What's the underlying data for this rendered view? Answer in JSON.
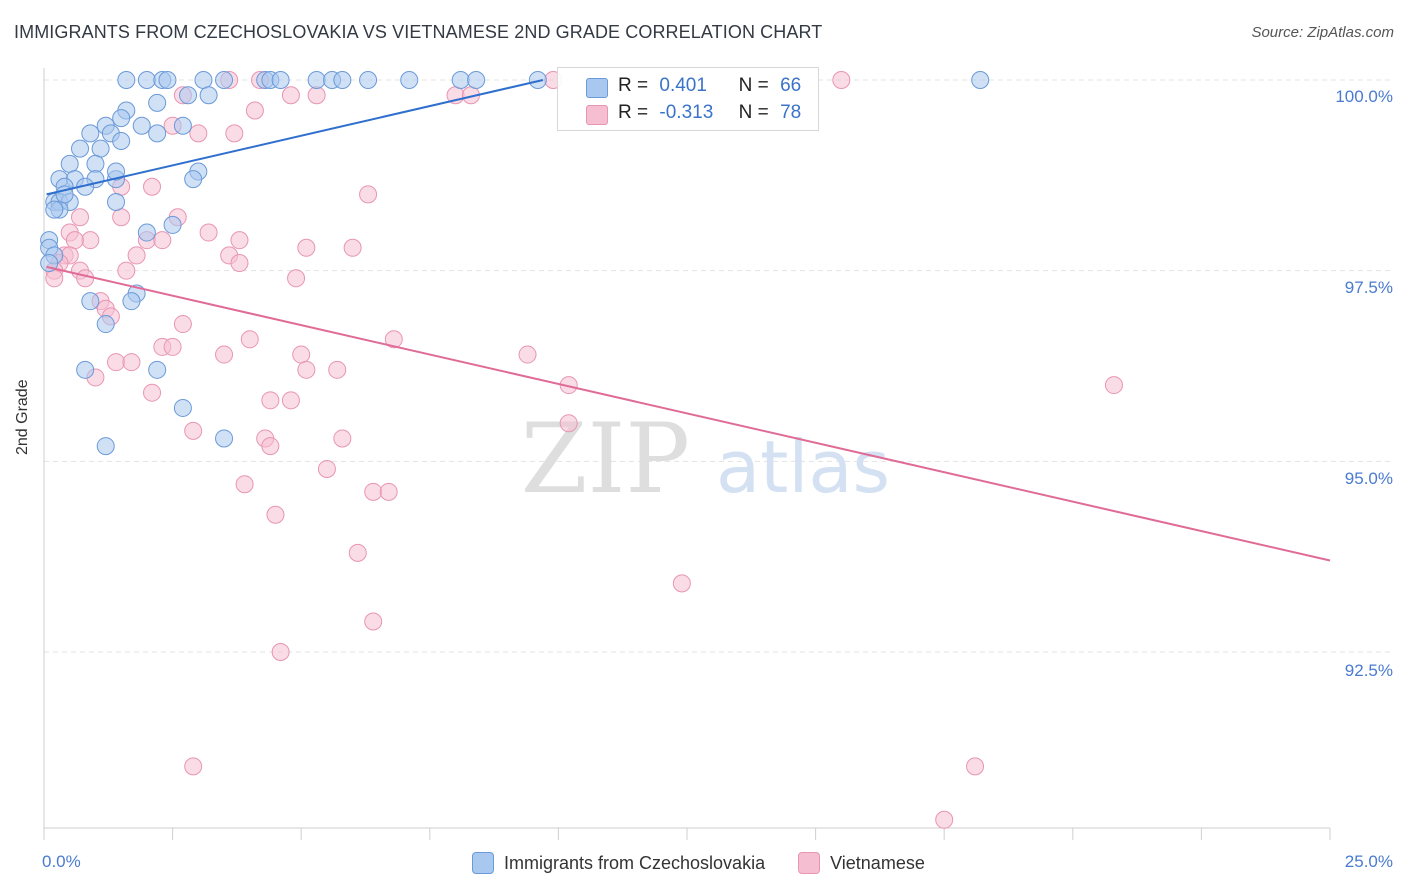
{
  "header": {
    "title": "IMMIGRANTS FROM CZECHOSLOVAKIA VS VIETNAMESE 2ND GRADE CORRELATION CHART",
    "source": "Source: ZipAtlas.com"
  },
  "legend": {
    "r_label": "R =",
    "n_label": "N =",
    "series1": {
      "r": "0.401",
      "n": "66"
    },
    "series2": {
      "r": "-0.313",
      "n": "78"
    }
  },
  "watermark": {
    "zip": "ZIP",
    "atlas": "atlas"
  },
  "colors": {
    "blue_fill": "#a9c8ef",
    "blue_stroke": "#6b9ad8",
    "blue_line": "#2f6fce",
    "pink_fill": "#f6bfd1",
    "pink_stroke": "#e895b2",
    "pink_line": "#e06b96",
    "tick": "#4a7bd0"
  },
  "chart_data": {
    "type": "scatter",
    "title": "IMMIGRANTS FROM CZECHOSLOVAKIA VS VIETNAMESE 2ND GRADE CORRELATION CHART",
    "xlabel": "",
    "ylabel": "2nd Grade",
    "xlim": [
      0,
      25
    ],
    "ylim": [
      90.2,
      100.5
    ],
    "x_tick_labels": [
      "0.0%",
      "25.0%"
    ],
    "y_ticks": [
      92.5,
      95.0,
      97.5,
      100.0
    ],
    "y_tick_labels": [
      "92.5%",
      "95.0%",
      "97.5%",
      "100.0%"
    ],
    "grid": true,
    "series": [
      {
        "name": "Immigrants from Czechoslovakia",
        "color": "blue",
        "trend": {
          "x": [
            0.05,
            9.7
          ],
          "y": [
            98.5,
            100.0
          ]
        },
        "points": [
          [
            1.6,
            100
          ],
          [
            2.0,
            100
          ],
          [
            2.3,
            100
          ],
          [
            2.4,
            100
          ],
          [
            3.1,
            100
          ],
          [
            3.5,
            100
          ],
          [
            4.3,
            100
          ],
          [
            4.4,
            100
          ],
          [
            4.6,
            100
          ],
          [
            5.3,
            100
          ],
          [
            5.6,
            100
          ],
          [
            5.8,
            100
          ],
          [
            6.3,
            100
          ],
          [
            7.1,
            100
          ],
          [
            8.1,
            100
          ],
          [
            8.4,
            100
          ],
          [
            9.6,
            100
          ],
          [
            18.2,
            100
          ],
          [
            1.6,
            99.6
          ],
          [
            2.2,
            99.7
          ],
          [
            2.8,
            99.8
          ],
          [
            3.2,
            99.8
          ],
          [
            1.9,
            99.4
          ],
          [
            2.2,
            99.3
          ],
          [
            2.7,
            99.4
          ],
          [
            1.2,
            99.4
          ],
          [
            1.3,
            99.3
          ],
          [
            1.5,
            99.5
          ],
          [
            0.9,
            99.3
          ],
          [
            1.5,
            99.2
          ],
          [
            0.7,
            99.1
          ],
          [
            1.1,
            99.1
          ],
          [
            0.5,
            98.9
          ],
          [
            1.0,
            98.9
          ],
          [
            3.0,
            98.8
          ],
          [
            0.3,
            98.7
          ],
          [
            0.6,
            98.7
          ],
          [
            1.0,
            98.7
          ],
          [
            1.4,
            98.7
          ],
          [
            0.4,
            98.6
          ],
          [
            0.8,
            98.6
          ],
          [
            2.9,
            98.7
          ],
          [
            0.2,
            98.4
          ],
          [
            0.3,
            98.4
          ],
          [
            0.5,
            98.4
          ],
          [
            1.4,
            98.4
          ],
          [
            0.3,
            98.3
          ],
          [
            2.0,
            98.0
          ],
          [
            2.5,
            98.1
          ],
          [
            0.1,
            97.9
          ],
          [
            0.1,
            97.8
          ],
          [
            0.2,
            97.7
          ],
          [
            0.1,
            97.6
          ],
          [
            0.9,
            97.1
          ],
          [
            1.8,
            97.2
          ],
          [
            1.7,
            97.1
          ],
          [
            1.2,
            96.8
          ],
          [
            0.8,
            96.2
          ],
          [
            2.2,
            96.2
          ],
          [
            2.7,
            95.7
          ],
          [
            3.5,
            95.3
          ],
          [
            1.2,
            95.2
          ],
          [
            0.2,
            98.3
          ],
          [
            0.4,
            98.5
          ],
          [
            1.4,
            98.8
          ]
        ]
      },
      {
        "name": "Vietnamese",
        "color": "pink",
        "trend": {
          "x": [
            0.05,
            25.0
          ],
          "y": [
            97.55,
            93.7
          ]
        },
        "points": [
          [
            3.6,
            100
          ],
          [
            4.2,
            100
          ],
          [
            9.9,
            100
          ],
          [
            15.5,
            100
          ],
          [
            2.7,
            99.8
          ],
          [
            4.8,
            99.8
          ],
          [
            8.0,
            99.8
          ],
          [
            8.3,
            99.8
          ],
          [
            5.3,
            99.8
          ],
          [
            4.1,
            99.6
          ],
          [
            2.5,
            99.4
          ],
          [
            3.0,
            99.3
          ],
          [
            3.7,
            99.3
          ],
          [
            2.1,
            98.6
          ],
          [
            1.5,
            98.6
          ],
          [
            6.3,
            98.5
          ],
          [
            0.7,
            98.2
          ],
          [
            1.5,
            98.2
          ],
          [
            2.6,
            98.2
          ],
          [
            3.2,
            98.0
          ],
          [
            0.5,
            98.0
          ],
          [
            0.9,
            97.9
          ],
          [
            0.6,
            97.9
          ],
          [
            2.0,
            97.9
          ],
          [
            2.3,
            97.9
          ],
          [
            3.8,
            97.9
          ],
          [
            5.1,
            97.8
          ],
          [
            6.0,
            97.8
          ],
          [
            0.4,
            97.7
          ],
          [
            0.5,
            97.7
          ],
          [
            1.8,
            97.7
          ],
          [
            3.6,
            97.7
          ],
          [
            3.8,
            97.6
          ],
          [
            0.3,
            97.6
          ],
          [
            0.2,
            97.5
          ],
          [
            0.7,
            97.5
          ],
          [
            1.6,
            97.5
          ],
          [
            4.9,
            97.4
          ],
          [
            0.2,
            97.4
          ],
          [
            0.8,
            97.4
          ],
          [
            1.1,
            97.1
          ],
          [
            1.2,
            97.0
          ],
          [
            1.3,
            96.9
          ],
          [
            2.7,
            96.8
          ],
          [
            4.0,
            96.6
          ],
          [
            6.8,
            96.6
          ],
          [
            2.3,
            96.5
          ],
          [
            2.5,
            96.5
          ],
          [
            3.5,
            96.4
          ],
          [
            5.0,
            96.4
          ],
          [
            9.4,
            96.4
          ],
          [
            1.4,
            96.3
          ],
          [
            1.7,
            96.3
          ],
          [
            5.1,
            96.2
          ],
          [
            5.7,
            96.2
          ],
          [
            1.0,
            96.1
          ],
          [
            10.2,
            96.0
          ],
          [
            20.8,
            96.0
          ],
          [
            2.1,
            95.9
          ],
          [
            4.4,
            95.8
          ],
          [
            4.8,
            95.8
          ],
          [
            10.2,
            95.5
          ],
          [
            2.9,
            95.4
          ],
          [
            4.3,
            95.3
          ],
          [
            5.8,
            95.3
          ],
          [
            4.4,
            95.2
          ],
          [
            5.5,
            94.9
          ],
          [
            3.9,
            94.7
          ],
          [
            6.4,
            94.6
          ],
          [
            6.7,
            94.6
          ],
          [
            4.5,
            94.3
          ],
          [
            6.1,
            93.8
          ],
          [
            12.4,
            93.4
          ],
          [
            6.4,
            92.9
          ],
          [
            4.6,
            92.5
          ],
          [
            2.9,
            91.0
          ],
          [
            18.1,
            91.0
          ],
          [
            17.5,
            90.3
          ]
        ]
      }
    ]
  },
  "bottom_legend": {
    "series1_label": "Immigrants from Czechoslovakia",
    "series2_label": "Vietnamese"
  }
}
